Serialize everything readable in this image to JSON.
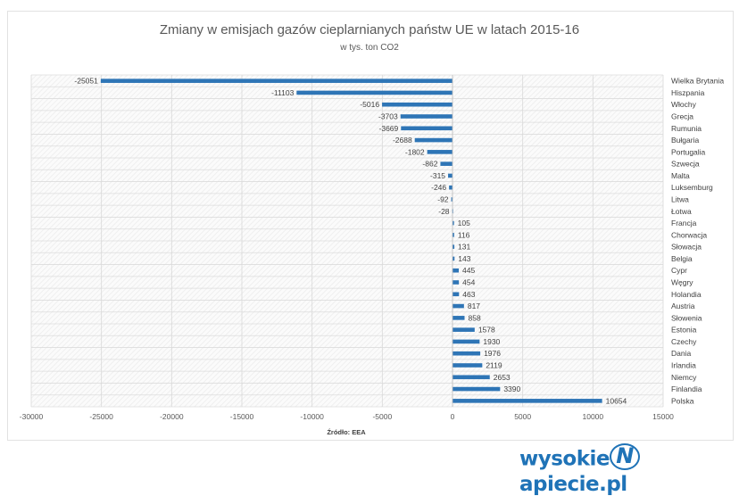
{
  "chart_data": {
    "type": "bar",
    "orientation": "horizontal",
    "title": "Zmiany w emisjach gazów cieplarnianych państw UE w latach 2015-16",
    "subtitle": "w tys. ton CO2",
    "xlabel": "Źródło: EEA",
    "xlim": [
      -30000,
      15000
    ],
    "xticks": [
      -30000,
      -25000,
      -20000,
      -15000,
      -10000,
      -5000,
      0,
      5000,
      10000,
      15000
    ],
    "grid": true,
    "bar_color": "#2e75b6",
    "categories": [
      "Wielka Brytania",
      "Hiszpania",
      "Włochy",
      "Grecja",
      "Rumunia",
      "Bułgaria",
      "Portugalia",
      "Szwecja",
      "Malta",
      "Luksemburg",
      "Litwa",
      "Łotwa",
      "Francja",
      "Chorwacja",
      "Słowacja",
      "Belgia",
      "Cypr",
      "Węgry",
      "Holandia",
      "Austria",
      "Słowenia",
      "Estonia",
      "Czechy",
      "Dania",
      "Irlandia",
      "Niemcy",
      "Finlandia",
      "Polska"
    ],
    "values": [
      -25051,
      -11103,
      -5016,
      -3703,
      -3669,
      -2688,
      -1802,
      -862,
      -315,
      -246,
      -92,
      -28,
      105,
      116,
      131,
      143,
      445,
      454,
      463,
      817,
      858,
      1578,
      1930,
      1976,
      2119,
      2653,
      3390,
      10654
    ]
  },
  "logo": {
    "text_left": "wysokie",
    "text_mark": "N",
    "text_right": "apiecie.pl"
  }
}
